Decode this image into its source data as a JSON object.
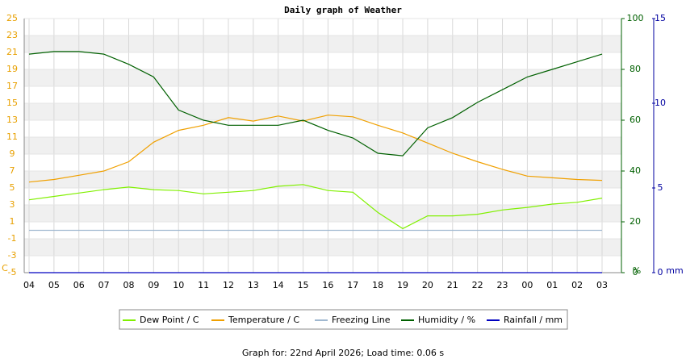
{
  "chart_data": {
    "type": "line",
    "title": "Daily graph of Weather",
    "categories": [
      "04",
      "05",
      "06",
      "07",
      "08",
      "09",
      "10",
      "11",
      "12",
      "13",
      "14",
      "15",
      "16",
      "17",
      "18",
      "19",
      "20",
      "21",
      "22",
      "23",
      "00",
      "01",
      "02",
      "03"
    ],
    "ylim": [
      -5,
      25
    ],
    "yticks": [
      -5,
      -3,
      -1,
      1,
      3,
      5,
      7,
      9,
      11,
      13,
      15,
      17,
      19,
      21,
      23,
      25
    ],
    "y_label": "C",
    "y2lim": [
      0,
      100
    ],
    "y2ticks": [
      0,
      20,
      40,
      60,
      80,
      100
    ],
    "y2_label": "%",
    "y3lim": [
      0,
      15
    ],
    "y3ticks": [
      0,
      5,
      10,
      15
    ],
    "y3_label": "mm",
    "grid": true,
    "series": [
      {
        "name": "Dew Point / C",
        "color": "#80f000",
        "axis": "y",
        "values": [
          3.6,
          4.0,
          4.4,
          4.8,
          5.1,
          4.8,
          4.7,
          4.3,
          4.5,
          4.7,
          5.2,
          5.4,
          4.7,
          4.5,
          2.1,
          0.2,
          1.7,
          1.7,
          1.9,
          2.4,
          2.7,
          3.1,
          3.3,
          3.8
        ]
      },
      {
        "name": "Temperature / C",
        "color": "#f0a000",
        "axis": "y",
        "values": [
          5.7,
          6.0,
          6.5,
          7.0,
          8.1,
          10.4,
          11.8,
          12.4,
          13.3,
          12.9,
          13.5,
          12.9,
          13.6,
          13.4,
          12.4,
          11.5,
          10.3,
          9.1,
          8.1,
          7.2,
          6.4,
          6.2,
          6.0,
          5.9
        ]
      },
      {
        "name": "Freezing Line",
        "color": "#a0b8d0",
        "axis": "y",
        "values": [
          0,
          0,
          0,
          0,
          0,
          0,
          0,
          0,
          0,
          0,
          0,
          0,
          0,
          0,
          0,
          0,
          0,
          0,
          0,
          0,
          0,
          0,
          0,
          0
        ]
      },
      {
        "name": "Humidity / %",
        "color": "#006000",
        "axis": "y2",
        "values": [
          86,
          87,
          87,
          86,
          82,
          77,
          64,
          60,
          58,
          58,
          58,
          60,
          56,
          53,
          47,
          46,
          57,
          61,
          67,
          72,
          77,
          80,
          83,
          86
        ]
      },
      {
        "name": "Rainfall / mm",
        "color": "#0000c0",
        "axis": "y3",
        "values": [
          0,
          0,
          0,
          0,
          0,
          0,
          0,
          0,
          0,
          0,
          0,
          0,
          0,
          0,
          0,
          0,
          0,
          0,
          0,
          0,
          0,
          0,
          0,
          0
        ]
      }
    ]
  },
  "footer": "Graph for: 22nd April 2026; Load time: 0.06 s"
}
